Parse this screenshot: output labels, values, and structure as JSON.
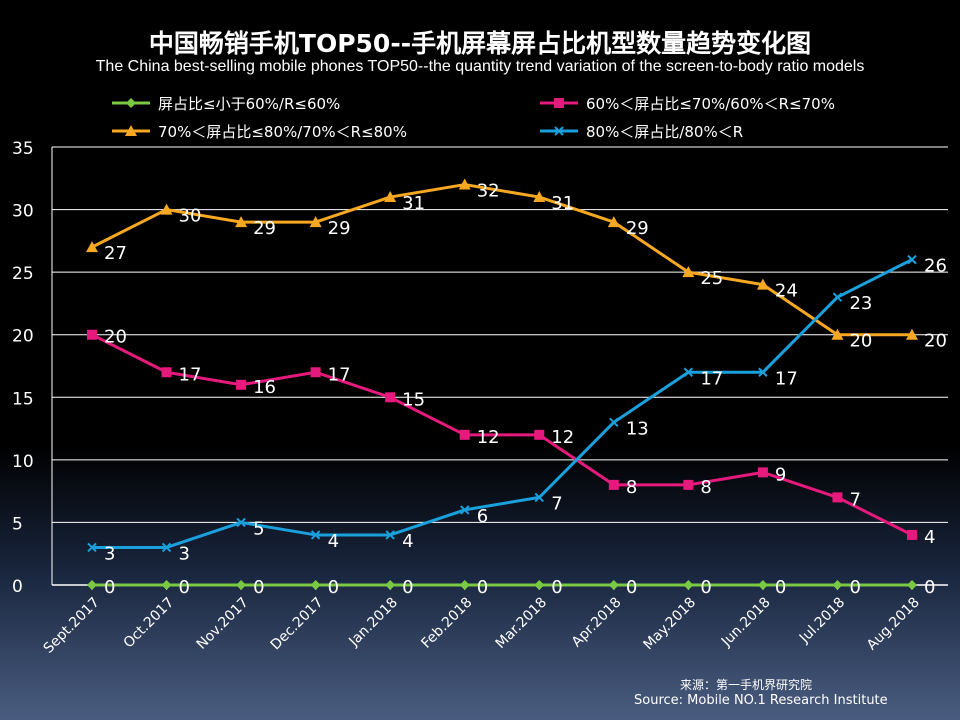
{
  "title_cn": "中国畅销手机TOP50--手机屏幕屏占比机型数量趋势变化图",
  "title_en": "The China best-selling mobile phones TOP50--the quantity trend variation of the screen-to-body ratio models",
  "source_cn": "来源：第一手机界研究院",
  "source_en": "Source: Mobile NO.1 Research Institute",
  "chart_data": {
    "type": "line",
    "title": "中国畅销手机TOP50--手机屏幕屏占比机型数量趋势变化图",
    "xlabel": "",
    "ylabel": "",
    "ylim": [
      0,
      35
    ],
    "yticks": [
      "0",
      "5",
      "10",
      "15",
      "20",
      "25",
      "30",
      "35"
    ],
    "grid": true,
    "legend_position": "top",
    "categories": [
      "Sept.2017",
      "Oct.2017",
      "Nov.2017",
      "Dec.2017",
      "Jan.2018",
      "Feb.2018",
      "Mar.2018",
      "Apr.2018",
      "May.2018",
      "Jun.2018",
      "Jul.2018",
      "Aug.2018"
    ],
    "series": [
      {
        "name": "屏占比≤小于60%/R≤60%",
        "color": "#7ac943",
        "marker": "diamond",
        "values": [
          0,
          0,
          0,
          0,
          0,
          0,
          0,
          0,
          0,
          0,
          0,
          0
        ]
      },
      {
        "name": "60%＜屏占比≤70%/60%＜R≤70%",
        "color": "#e6197d",
        "marker": "square",
        "values": [
          20,
          17,
          16,
          17,
          15,
          12,
          12,
          8,
          8,
          9,
          7,
          4
        ]
      },
      {
        "name": "70%＜屏占比≤80%/70%＜R≤80%",
        "color": "#f7a823",
        "marker": "triangle",
        "values": [
          27,
          30,
          29,
          29,
          31,
          32,
          31,
          29,
          25,
          24,
          20,
          20
        ]
      },
      {
        "name": "80%＜屏占比/80%＜R",
        "color": "#1aa0dc",
        "marker": "x",
        "values": [
          3,
          3,
          5,
          4,
          4,
          6,
          7,
          13,
          17,
          17,
          23,
          26
        ]
      }
    ]
  }
}
